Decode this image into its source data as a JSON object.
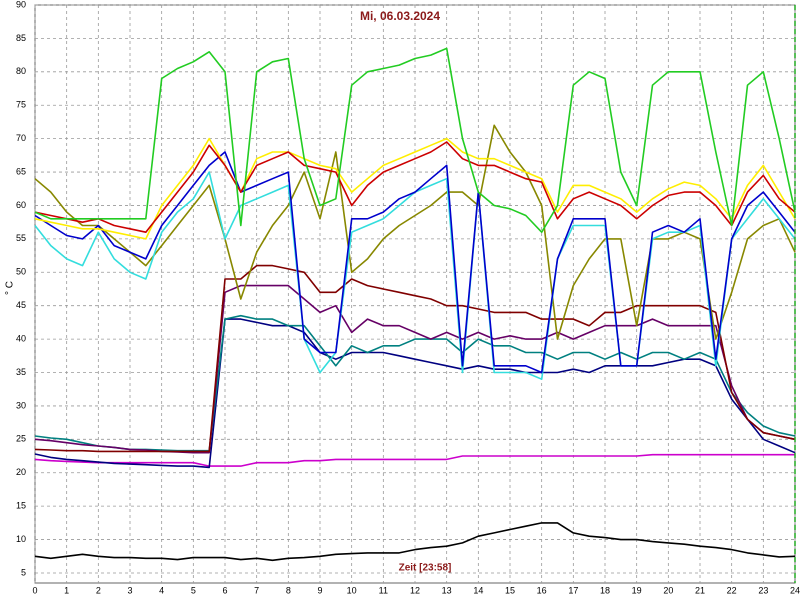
{
  "chart_data": {
    "type": "line",
    "title": "Mi, 06.03.2024",
    "y_label": "° C",
    "x_label": "Zeit [23:58]",
    "x": [
      0,
      0.5,
      1,
      1.5,
      2,
      2.5,
      3,
      3.5,
      4,
      4.5,
      5,
      5.5,
      6,
      6.5,
      7,
      7.5,
      8,
      8.5,
      9,
      9.5,
      10,
      10.5,
      11,
      11.5,
      12,
      12.5,
      13,
      13.5,
      14,
      14.5,
      15,
      15.5,
      16,
      16.5,
      17,
      17.5,
      18,
      18.5,
      19,
      19.5,
      20,
      20.5,
      21,
      21.5,
      22,
      22.5,
      23,
      23.5,
      24
    ],
    "xlim": [
      0,
      24
    ],
    "xticks": [
      0,
      1,
      2,
      3,
      4,
      5,
      6,
      7,
      8,
      9,
      10,
      11,
      12,
      13,
      14,
      15,
      16,
      17,
      18,
      19,
      20,
      21,
      22,
      23,
      24
    ],
    "ylim": [
      3.5,
      90
    ],
    "yticks": [
      5,
      10,
      15,
      20,
      25,
      30,
      35,
      40,
      45,
      50,
      55,
      60,
      65,
      70,
      75,
      80,
      85,
      90
    ],
    "grid": true,
    "series": [
      {
        "color": "#000000",
        "values": [
          7.5,
          7.2,
          7.5,
          7.8,
          7.5,
          7.3,
          7.3,
          7.2,
          7.2,
          7,
          7.3,
          7.3,
          7.3,
          7,
          7.2,
          6.9,
          7.2,
          7.3,
          7.5,
          7.8,
          7.9,
          8,
          8,
          8,
          8.5,
          8.8,
          9,
          9.5,
          10.5,
          11,
          11.5,
          12,
          12.5,
          12.5,
          11,
          10.5,
          10.3,
          10,
          10,
          9.7,
          9.5,
          9.3,
          9,
          8.8,
          8.5,
          8,
          7.7,
          7.4,
          7.5
        ]
      },
      {
        "color": "#cc00cc",
        "values": [
          22,
          21.8,
          21.7,
          21.6,
          21.5,
          21.5,
          21.5,
          21.5,
          21.5,
          21.5,
          21.5,
          21,
          21,
          21,
          21.5,
          21.5,
          21.5,
          21.8,
          21.8,
          22,
          22,
          22,
          22,
          22,
          22,
          22,
          22,
          22.5,
          22.5,
          22.5,
          22.5,
          22.5,
          22.5,
          22.5,
          22.5,
          22.5,
          22.5,
          22.5,
          22.5,
          22.7,
          22.7,
          22.7,
          22.7,
          22.7,
          22.7,
          22.7,
          22.7,
          22.7,
          22.7
        ]
      },
      {
        "color": "#000080",
        "values": [
          22.8,
          22.3,
          22,
          21.8,
          21.6,
          21.4,
          21.3,
          21.2,
          21.1,
          21,
          21,
          20.8,
          43,
          43,
          42.5,
          42,
          42,
          41,
          38,
          37,
          38,
          38,
          38,
          37.5,
          37,
          36.5,
          36,
          35.5,
          36,
          35.5,
          35.5,
          35,
          35,
          35,
          35.5,
          35,
          36,
          36,
          36,
          36,
          36.5,
          37,
          37,
          36,
          31,
          28,
          25,
          24,
          23
        ]
      },
      {
        "color": "#008080",
        "values": [
          25.5,
          25.2,
          25,
          24.5,
          24,
          23.8,
          23.5,
          23.5,
          23.4,
          23.3,
          23.3,
          23.3,
          43,
          43.5,
          43,
          43,
          42,
          42,
          39,
          36,
          39,
          38,
          39,
          39,
          40,
          40,
          40,
          38,
          40,
          39,
          39,
          38,
          38,
          37,
          38,
          38,
          37,
          38,
          37,
          38,
          38,
          37,
          38,
          37,
          32,
          29,
          27,
          26,
          25.5
        ]
      },
      {
        "color": "#660066",
        "values": [
          25,
          24.8,
          24.5,
          24.2,
          24,
          23.8,
          23.5,
          23.4,
          23.2,
          23.1,
          23,
          23,
          47,
          48,
          48,
          48,
          48,
          46,
          44,
          45,
          41,
          43,
          42,
          42,
          41,
          40,
          41,
          40,
          41,
          40,
          40.5,
          40,
          40,
          41,
          40,
          41,
          42,
          42,
          42,
          43,
          42,
          42,
          42,
          42,
          33,
          28,
          26,
          25.5,
          25
        ]
      },
      {
        "color": "#800000",
        "values": [
          23.5,
          23.4,
          23.3,
          23.3,
          23.2,
          23.2,
          23.2,
          23.2,
          23.2,
          23.2,
          23.2,
          23.2,
          49,
          49,
          51,
          51,
          50.5,
          50,
          47,
          47,
          49,
          48,
          47.5,
          47,
          46.5,
          46,
          45,
          45,
          44.5,
          44,
          44,
          44,
          43,
          43,
          43,
          42,
          44,
          44,
          45,
          45,
          45,
          45,
          45,
          44,
          32,
          28,
          26,
          25.5,
          25
        ]
      },
      {
        "color": "#888800",
        "values": [
          64,
          62,
          59,
          57,
          57,
          55,
          53,
          51,
          54,
          57,
          60,
          63,
          55,
          46,
          53,
          57,
          60,
          65,
          58,
          68,
          50,
          52,
          55,
          57,
          58.5,
          60,
          62,
          62,
          60,
          72,
          68,
          65,
          60,
          40,
          48,
          52,
          55,
          55,
          42,
          55,
          55,
          56,
          55,
          40,
          47,
          55,
          57,
          58,
          53
        ]
      },
      {
        "color": "#33dddd",
        "values": [
          57,
          54,
          52,
          51,
          56,
          52,
          50,
          49,
          56,
          59,
          61,
          65,
          55,
          60,
          61,
          62,
          63,
          40,
          35,
          38,
          56,
          57,
          58,
          60,
          62,
          63,
          64,
          35,
          62,
          35,
          35,
          35,
          34,
          52,
          57,
          57,
          57,
          36,
          36,
          55,
          56,
          56,
          57,
          36,
          55,
          58,
          61,
          58,
          55
        ]
      },
      {
        "color": "#0000cc",
        "values": [
          58.5,
          57,
          55.5,
          55,
          57,
          54,
          53,
          52,
          57,
          60,
          63,
          66,
          68,
          62,
          63,
          64,
          65,
          40,
          38,
          38,
          58,
          58,
          59,
          61,
          62,
          64,
          66,
          36,
          62,
          36,
          36,
          36,
          35,
          52,
          58,
          58,
          58,
          36,
          36,
          56,
          57,
          56,
          58,
          37,
          55,
          60,
          62,
          59,
          56
        ]
      },
      {
        "color": "#ffee00",
        "values": [
          58,
          57.5,
          57,
          56.5,
          56.5,
          56,
          55.5,
          55,
          60,
          63,
          66,
          70,
          66,
          62,
          67,
          68,
          68,
          67,
          66,
          65.5,
          62,
          64,
          66,
          67,
          68,
          69,
          70,
          68,
          67,
          67,
          66,
          65,
          64,
          59,
          63,
          63,
          62,
          61,
          59,
          61,
          62.5,
          63.5,
          63,
          61,
          58,
          63,
          66,
          62,
          58
        ]
      },
      {
        "color": "#cc0000",
        "values": [
          59,
          58.5,
          58,
          57.5,
          58,
          57,
          56.5,
          56,
          59,
          62,
          65,
          69,
          66,
          62,
          66,
          67,
          68,
          66,
          65.5,
          65,
          60,
          63,
          65,
          66,
          67,
          68,
          69.5,
          67,
          66,
          66,
          65,
          64,
          63.5,
          58,
          61,
          62,
          61,
          60,
          58,
          60,
          61.5,
          62,
          62,
          60,
          57,
          62,
          64.5,
          61,
          59
        ]
      },
      {
        "color": "#22cc22",
        "values": [
          59,
          58,
          58,
          58,
          58,
          58,
          58,
          58,
          79,
          80.5,
          81.5,
          83,
          80,
          57,
          80,
          81.5,
          82,
          67,
          60,
          61,
          78,
          80,
          80.5,
          81,
          82,
          82.5,
          83.5,
          70,
          62,
          60,
          59.5,
          58.5,
          56,
          60,
          78,
          80,
          79,
          65,
          60,
          78,
          80,
          80,
          80,
          68,
          57,
          78,
          80,
          70,
          59
        ]
      }
    ]
  }
}
